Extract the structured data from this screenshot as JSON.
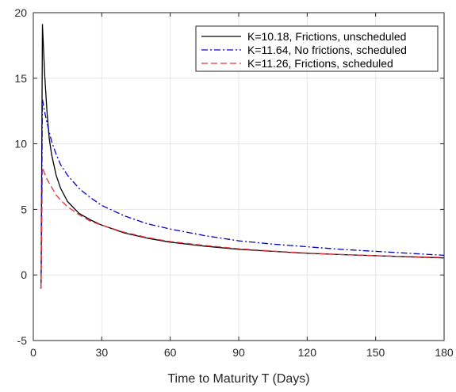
{
  "chart_data": {
    "type": "line",
    "title": "",
    "xlabel": "Time to Maturity T (Days)",
    "ylabel": "",
    "xlim": [
      0,
      180
    ],
    "ylim": [
      -5,
      20
    ],
    "xticks": [
      0,
      30,
      60,
      90,
      120,
      150,
      180
    ],
    "yticks": [
      -5,
      0,
      5,
      10,
      15,
      20
    ],
    "grid": true,
    "legend_position": "top-right",
    "series": [
      {
        "name": "K=10.18, Frictions, unscheduled",
        "color": "#000000",
        "dash": "solid",
        "x": [
          3,
          3.2,
          3.4,
          4,
          5,
          6,
          7,
          8,
          10,
          12,
          15,
          20,
          25,
          30,
          40,
          50,
          60,
          75,
          90,
          105,
          120,
          135,
          150,
          165,
          180
        ],
        "y": [
          -1,
          -1,
          -1,
          19.1,
          15.2,
          12.4,
          10.4,
          9.2,
          7.6,
          6.6,
          5.6,
          4.7,
          4.2,
          3.8,
          3.2,
          2.8,
          2.5,
          2.2,
          1.95,
          1.8,
          1.65,
          1.55,
          1.47,
          1.38,
          1.3
        ]
      },
      {
        "name": "K=11.64, No frictions, scheduled",
        "color": "#0000cc",
        "dash": "dashdot",
        "x": [
          3,
          3.2,
          3.4,
          4,
          5,
          6,
          7,
          8,
          10,
          12,
          15,
          20,
          25,
          30,
          40,
          50,
          60,
          75,
          90,
          105,
          120,
          135,
          150,
          165,
          180
        ],
        "y": [
          -1,
          -1,
          -1,
          13.4,
          12.4,
          11.6,
          10.9,
          10.2,
          9.2,
          8.4,
          7.6,
          6.6,
          5.9,
          5.3,
          4.5,
          3.9,
          3.5,
          3.0,
          2.6,
          2.35,
          2.15,
          1.95,
          1.8,
          1.65,
          1.5
        ]
      },
      {
        "name": "K=11.26, Frictions, scheduled",
        "color": "#e8303a",
        "dash": "dashed",
        "x": [
          3,
          3.2,
          3.4,
          4,
          5,
          6,
          7,
          8,
          10,
          12,
          15,
          20,
          25,
          30,
          40,
          50,
          60,
          75,
          90,
          105,
          120,
          135,
          150,
          165,
          180
        ],
        "y": [
          -1,
          -1,
          -1,
          8.2,
          7.7,
          7.3,
          7.0,
          6.7,
          6.1,
          5.7,
          5.2,
          4.6,
          4.1,
          3.8,
          3.25,
          2.85,
          2.55,
          2.25,
          2.0,
          1.82,
          1.67,
          1.56,
          1.47,
          1.4,
          1.33
        ]
      }
    ]
  }
}
